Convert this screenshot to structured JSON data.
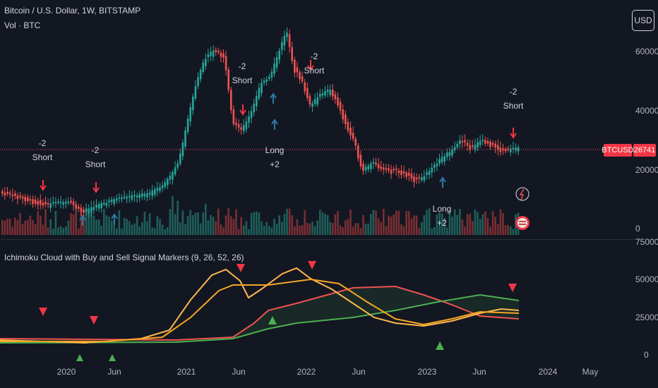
{
  "header": {
    "symbol_title": "Bitcoin / U.S. Dollar, 1W, BITSTAMP",
    "volume_label": "Vol · BTC",
    "currency_button": "USD"
  },
  "price_axis": {
    "labels": [
      "60000",
      "40000",
      "20000",
      "0"
    ],
    "symbol_tag": "BTCUSD",
    "last_price": "26741"
  },
  "indicator": {
    "title": "Ichimoku Cloud with Buy and Sell Signal Markers (9, 26, 52, 26)",
    "axis_labels": [
      "75000",
      "50000",
      "25000",
      "0"
    ]
  },
  "time_axis": {
    "labels": [
      "2020",
      "Jun",
      "2021",
      "Jun",
      "2022",
      "Jun",
      "2023",
      "Jun",
      "2024",
      "May"
    ]
  },
  "signals": [
    {
      "line1": "-2",
      "line2": "Short"
    },
    {
      "line1": "-2",
      "line2": "Short"
    },
    {
      "line1": "-2",
      "line2": "Short"
    },
    {
      "line1": "-2",
      "line2": "Short"
    },
    {
      "line1": "-2",
      "line2": "Short"
    },
    {
      "line1": "Long",
      "line2": "+2"
    },
    {
      "line1": "Long",
      "line2": "+2"
    }
  ],
  "colors": {
    "background": "#131722",
    "up": "#26a69a",
    "down": "#ef5350",
    "short_marker": "#f23645",
    "long_marker": "#2a7aa3",
    "tenkan": "#ffb74d",
    "kijun": "#f5a623",
    "span_a": "#4caf50",
    "span_b": "#ef5350"
  }
}
